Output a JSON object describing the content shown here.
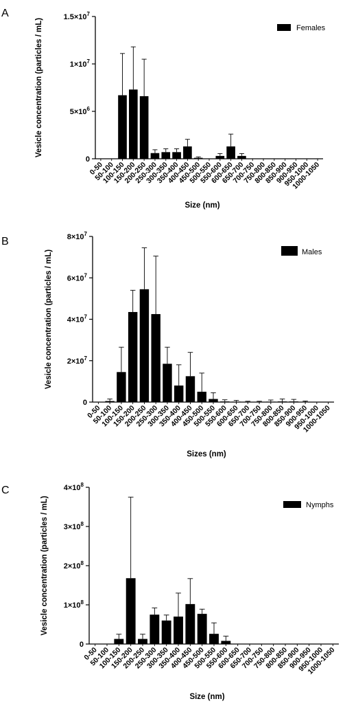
{
  "chart_data": [
    {
      "panel": "A",
      "type": "bar",
      "xlabel": "Size (nm)",
      "ylabel": "Vesicle concentration (particles / mL)",
      "legend": "Females",
      "ylim": [
        0,
        15000000
      ],
      "yticks": [
        {
          "value": 0,
          "base": "0",
          "exp": ""
        },
        {
          "value": 5000000,
          "base": "5×10",
          "exp": "6"
        },
        {
          "value": 10000000,
          "base": "1×10",
          "exp": "7"
        },
        {
          "value": 15000000,
          "base": "1.5×10",
          "exp": "7"
        }
      ],
      "categories": [
        "0-50",
        "50-100",
        "100-150",
        "150-200",
        "200-250",
        "250-300",
        "300-350",
        "350-400",
        "400-450",
        "450-500",
        "500-550",
        "550-600",
        "600-650",
        "650-700",
        "700-750",
        "750-800",
        "800-850",
        "850-900",
        "900-950",
        "950-1000",
        "1000-1050"
      ],
      "values": [
        0,
        0,
        6700000,
        7300000,
        6600000,
        600000,
        700000,
        700000,
        1300000,
        100000,
        0,
        300000,
        1300000,
        300000,
        0,
        0,
        0,
        0,
        0,
        0,
        0
      ],
      "errors": [
        0,
        0,
        4400000,
        4500000,
        3900000,
        350000,
        350000,
        350000,
        750000,
        100000,
        0,
        250000,
        1300000,
        250000,
        0,
        0,
        0,
        0,
        0,
        0,
        0
      ]
    },
    {
      "panel": "B",
      "type": "bar",
      "xlabel": "Sizes (nm)",
      "ylabel": "Vesicle concentration (particles / mL)",
      "legend": "Males",
      "ylim": [
        0,
        80000000
      ],
      "yticks": [
        {
          "value": 0,
          "base": "0",
          "exp": ""
        },
        {
          "value": 20000000,
          "base": "2×10",
          "exp": "7"
        },
        {
          "value": 40000000,
          "base": "4×10",
          "exp": "7"
        },
        {
          "value": 60000000,
          "base": "6×10",
          "exp": "7"
        },
        {
          "value": 80000000,
          "base": "8×10",
          "exp": "7"
        }
      ],
      "categories": [
        "0-50",
        "50-100",
        "100-150",
        "150-200",
        "200-250",
        "250-300",
        "300-350",
        "350-400",
        "400-450",
        "450-500",
        "500-550",
        "550-600",
        "600-650",
        "650-700",
        "700-750",
        "750-800",
        "800-850",
        "850-900",
        "900-950",
        "950-1000",
        "1000-1050"
      ],
      "values": [
        0,
        500000,
        14500000,
        43500000,
        54500000,
        42500000,
        18500000,
        8000000,
        12500000,
        5000000,
        1500000,
        300000,
        200000,
        100000,
        100000,
        200000,
        300000,
        300000,
        100000,
        0,
        0
      ],
      "errors": [
        0,
        1000000,
        12000000,
        10500000,
        20000000,
        28000000,
        8000000,
        10000000,
        11500000,
        9000000,
        3000000,
        800000,
        600000,
        300000,
        300000,
        800000,
        1200000,
        1000000,
        400000,
        0,
        0
      ]
    },
    {
      "panel": "C",
      "type": "bar",
      "xlabel": "Size (nm)",
      "ylabel": "Vesicle concentration (particles / mL)",
      "legend": "Nymphs",
      "ylim": [
        0,
        400000000
      ],
      "yticks": [
        {
          "value": 0,
          "base": "0",
          "exp": ""
        },
        {
          "value": 100000000,
          "base": "1×10",
          "exp": "8"
        },
        {
          "value": 200000000,
          "base": "2×10",
          "exp": "8"
        },
        {
          "value": 300000000,
          "base": "3×10",
          "exp": "8"
        },
        {
          "value": 400000000,
          "base": "4×10",
          "exp": "8"
        }
      ],
      "categories": [
        "0-50",
        "50-100",
        "100-150",
        "150-200",
        "200-250",
        "250-300",
        "300-350",
        "350-400",
        "400-450",
        "450-500",
        "500-550",
        "550-600",
        "600-650",
        "650-700",
        "700-750",
        "750-800",
        "800-850",
        "850-900",
        "900-950",
        "950-1000",
        "1000-1050"
      ],
      "values": [
        0,
        0,
        13000000,
        168000000,
        13000000,
        75000000,
        60000000,
        70000000,
        102000000,
        77000000,
        26000000,
        8000000,
        0,
        0,
        0,
        0,
        0,
        0,
        0,
        0,
        0
      ],
      "errors": [
        0,
        0,
        12000000,
        207000000,
        12000000,
        17000000,
        14000000,
        60000000,
        65000000,
        12000000,
        28000000,
        12000000,
        0,
        0,
        0,
        0,
        0,
        0,
        0,
        0,
        0
      ]
    }
  ]
}
